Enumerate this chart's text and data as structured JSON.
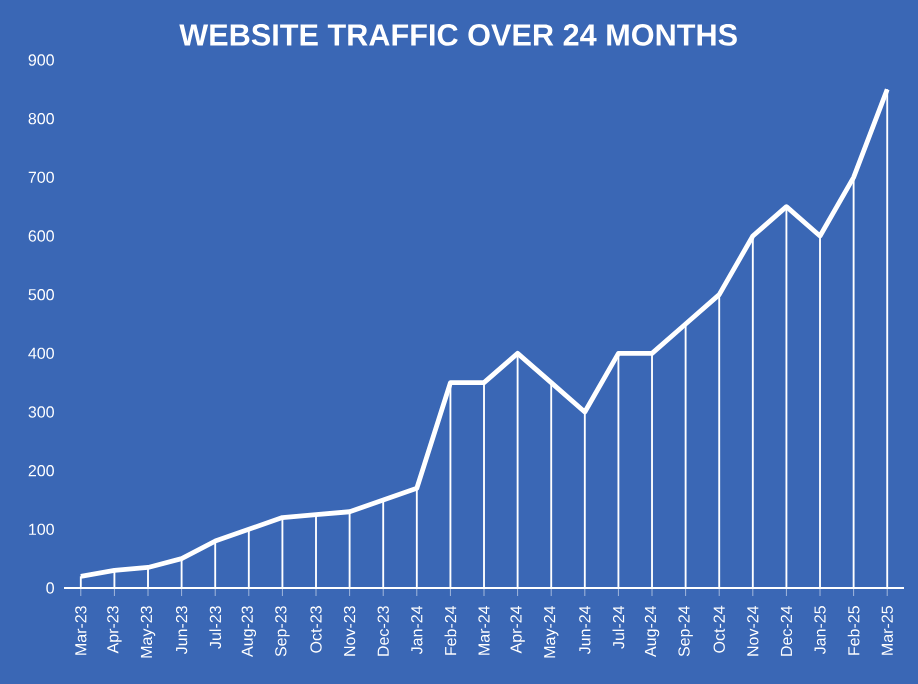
{
  "chart_data": {
    "type": "line",
    "title": "WEBSITE TRAFFIC OVER 24 MONTHS",
    "categories": [
      "Mar-23",
      "Apr-23",
      "May-23",
      "Jun-23",
      "Jul-23",
      "Aug-23",
      "Sep-23",
      "Oct-23",
      "Nov-23",
      "Dec-23",
      "Jan-24",
      "Feb-24",
      "Mar-24",
      "Apr-24",
      "May-24",
      "Jun-24",
      "Jul-24",
      "Aug-24",
      "Sep-24",
      "Oct-24",
      "Nov-24",
      "Dec-24",
      "Jan-25",
      "Feb-25",
      "Mar-25"
    ],
    "series": [
      {
        "type": "bar",
        "color": "#ffffff",
        "values": [
          20,
          30,
          35,
          50,
          80,
          100,
          120,
          125,
          130,
          150,
          170,
          350,
          350,
          400,
          350,
          300,
          400,
          400,
          450,
          500,
          600,
          650,
          600,
          700,
          850
        ]
      },
      {
        "color": "#ffffff",
        "values": [
          20,
          30,
          35,
          50,
          80,
          100,
          120,
          125,
          130,
          150,
          170,
          350,
          350,
          400,
          350,
          300,
          400,
          400,
          450,
          500,
          600,
          650,
          600,
          700,
          850
        ]
      }
    ],
    "ylim": [
      0,
      900
    ],
    "yticks": [
      0,
      100,
      200,
      300,
      400,
      500,
      600,
      700,
      800,
      900
    ],
    "marker": "none",
    "line_style": "solid"
  }
}
